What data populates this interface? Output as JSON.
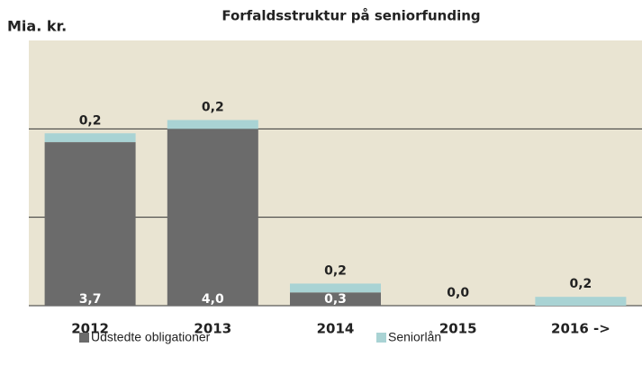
{
  "chart_data": {
    "type": "stacked-bar",
    "title": "Forfaldsstruktur på seniorfunding",
    "y_label": "Mia. kr.",
    "categories": [
      "2012",
      "2013",
      "2014",
      "2015",
      "2016 ->"
    ],
    "series": [
      {
        "name": "Udstedte obligationer",
        "color": "#6b6b6b",
        "values": [
          3.7,
          4.0,
          0.3,
          0,
          0
        ],
        "value_labels": [
          "3,7",
          "4,0",
          "0,3",
          null,
          null
        ]
      },
      {
        "name": "Seniorlån",
        "color": "#a9d3d4",
        "values": [
          0.2,
          0.2,
          0.2,
          0.0,
          0.2
        ],
        "value_labels": [
          "0,2",
          "0,2",
          "0,2",
          "0,0",
          "0,2"
        ]
      }
    ],
    "ylim": [
      0,
      6
    ],
    "yticks": [
      0,
      2,
      4
    ],
    "grid": true,
    "background": "#e9e4d2"
  }
}
